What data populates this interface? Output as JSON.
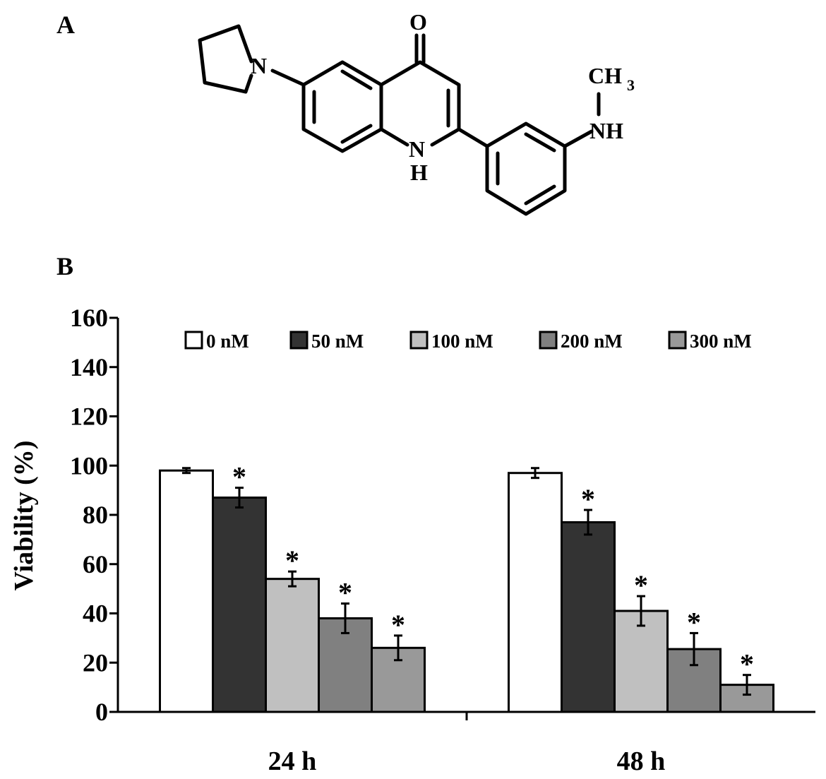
{
  "panels": {
    "a": "A",
    "b": "B"
  },
  "structure": {
    "atoms": {
      "o": "O",
      "n_ring": "N",
      "nh_n": "N",
      "nh_h": "H",
      "ch3_ch": "CH",
      "ch3_sub": "3",
      "nh_amine": "NH"
    }
  },
  "chart_data": {
    "type": "bar",
    "ylabel": "Viability (%)",
    "xlabel": "",
    "ylim": [
      0,
      160
    ],
    "yticks": [
      0,
      20,
      40,
      60,
      80,
      100,
      120,
      140,
      160
    ],
    "categories": [
      "24 h",
      "48 h"
    ],
    "legend_position": "top",
    "grid": false,
    "series": [
      {
        "name": "0 nM",
        "color": "#ffffff",
        "values": [
          98,
          97
        ],
        "errors": [
          1,
          2
        ],
        "significant": [
          false,
          false
        ]
      },
      {
        "name": "50 nM",
        "color": "#333333",
        "values": [
          87,
          77
        ],
        "errors": [
          4,
          5
        ],
        "significant": [
          true,
          true
        ]
      },
      {
        "name": "100 nM",
        "color": "#c0c0c0",
        "values": [
          54,
          41
        ],
        "errors": [
          3,
          6
        ],
        "significant": [
          true,
          true
        ]
      },
      {
        "name": "200 nM",
        "color": "#808080",
        "values": [
          38,
          25.5
        ],
        "errors": [
          6,
          6.5
        ],
        "significant": [
          true,
          true
        ]
      },
      {
        "name": "300 nM",
        "color": "#999999",
        "values": [
          26,
          11
        ],
        "errors": [
          5,
          4
        ],
        "significant": [
          true,
          true
        ]
      }
    ],
    "significance_marker": "*"
  }
}
